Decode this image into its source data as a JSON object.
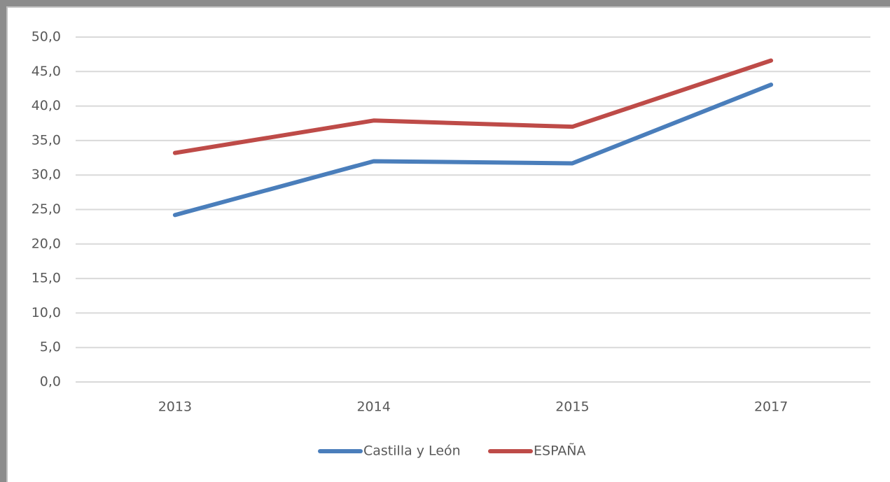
{
  "chart_data": {
    "type": "line",
    "categories": [
      "2013",
      "2014",
      "2015",
      "2017"
    ],
    "series": [
      {
        "name": "Castilla y León",
        "color": "#4a7ebb",
        "values": [
          24.2,
          32.0,
          31.7,
          43.1
        ]
      },
      {
        "name": "ESPAÑA",
        "color": "#be4b48",
        "values": [
          33.2,
          37.9,
          37.0,
          46.6
        ]
      }
    ],
    "ylim": [
      0,
      50
    ],
    "yticks": [
      {
        "value": 0,
        "label": "0,0"
      },
      {
        "value": 5,
        "label": "5,0"
      },
      {
        "value": 10,
        "label": "10,0"
      },
      {
        "value": 15,
        "label": "15,0"
      },
      {
        "value": 20,
        "label": "20,0"
      },
      {
        "value": 25,
        "label": "25,0"
      },
      {
        "value": 30,
        "label": "30,0"
      },
      {
        "value": 35,
        "label": "35,0"
      },
      {
        "value": 40,
        "label": "40,0"
      },
      {
        "value": 45,
        "label": "45,0"
      },
      {
        "value": 50,
        "label": "50,0"
      }
    ],
    "grid": true,
    "legend": "bottom"
  }
}
